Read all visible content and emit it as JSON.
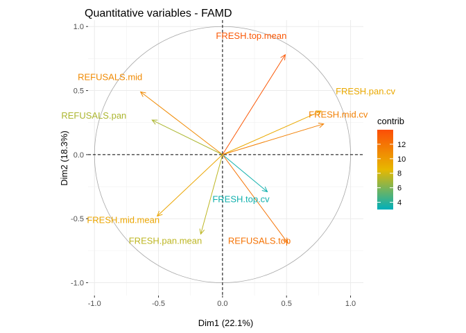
{
  "chart_data": {
    "type": "scatter",
    "title": "Quantitative variables - FAMD",
    "xlabel": "Dim1 (22.1%)",
    "ylabel": "Dim2 (18.3%)",
    "xlim": [
      -1.05,
      1.1
    ],
    "ylim": [
      -1.1,
      1.05
    ],
    "x_ticks": [
      -1.0,
      -0.5,
      0.0,
      0.5,
      1.0
    ],
    "x_tick_labels": [
      "-1.0",
      "-0.5",
      "0.0",
      "0.5",
      "1.0"
    ],
    "y_ticks": [
      -1.0,
      -0.5,
      0.0,
      0.5,
      1.0
    ],
    "y_tick_labels": [
      "-1.0",
      "-0.5",
      "0.0",
      "0.5",
      "1.0"
    ],
    "grid": true,
    "unit_circle": true,
    "variables": [
      {
        "name": "FRESH.top.mean",
        "x": 0.49,
        "y": 0.78,
        "contrib": 13.5
      },
      {
        "name": "REFUSALS.mid",
        "x": -0.64,
        "y": 0.49,
        "contrib": 10.9
      },
      {
        "name": "FRESH.pan.cv",
        "x": 0.77,
        "y": 0.34,
        "contrib": 9.3
      },
      {
        "name": "FRESH.mid.cv",
        "x": 0.79,
        "y": 0.24,
        "contrib": 11.4
      },
      {
        "name": "REFUSALS.pan",
        "x": -0.55,
        "y": 0.27,
        "contrib": 7.1
      },
      {
        "name": "FRESH.top.cv",
        "x": 0.35,
        "y": -0.29,
        "contrib": 3.4
      },
      {
        "name": "FRESH.mid.mean",
        "x": -0.51,
        "y": -0.48,
        "contrib": 9.5
      },
      {
        "name": "FRESH.pan.mean",
        "x": -0.17,
        "y": -0.62,
        "contrib": 7.5
      },
      {
        "name": "REFUSALS.top",
        "x": 0.51,
        "y": -0.69,
        "contrib": 12.1
      }
    ],
    "legend": {
      "title": "contrib",
      "position": "right",
      "min": 3.0,
      "max": 14.0,
      "ticks": [
        4,
        6,
        8,
        10,
        12
      ],
      "colors": [
        "#00AFBB",
        "#E7B800",
        "#FC4E07"
      ]
    }
  }
}
